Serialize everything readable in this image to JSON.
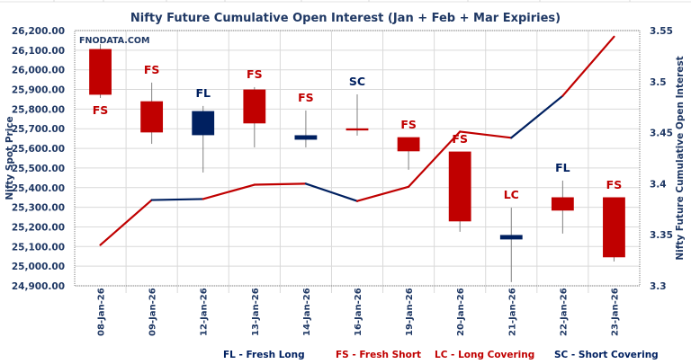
{
  "chart_data": {
    "type": "candlestick+line",
    "title": "Nifty Future Cumulative Open Interest (Jan  + Feb + Mar Expiries)",
    "watermark": "FNODATA.COM",
    "ylabel_left": "Nifty Spot Price",
    "ylabel_right": "Nifty Future Cumulative Open Interest",
    "ylim_left": [
      24900,
      26200
    ],
    "ylim_right": [
      3.3,
      3.55
    ],
    "left_ticks": [
      "26,200.00",
      "26,100.00",
      "26,000.00",
      "25,900.00",
      "25,800.00",
      "25,700.00",
      "25,600.00",
      "25,500.00",
      "25,400.00",
      "25,300.00",
      "25,200.00",
      "25,100.00",
      "25,000.00",
      "24,900.00"
    ],
    "right_ticks": [
      "3.55",
      "3.5",
      "3.45",
      "3.4",
      "3.35",
      "3.3"
    ],
    "grid": true,
    "categories": [
      "08-Jan-26",
      "09-Jan-26",
      "12-Jan-26",
      "13-Jan-26",
      "14-Jan-26",
      "16-Jan-26",
      "19-Jan-26",
      "20-Jan-26",
      "21-Jan-26",
      "22-Jan-26",
      "23-Jan-26"
    ],
    "candles": [
      {
        "open": 26104,
        "high": 26131,
        "low": 25857,
        "close": 25875,
        "label": "FS",
        "label_pos": "below"
      },
      {
        "open": 25838,
        "high": 25935,
        "low": 25623,
        "close": 25683,
        "label": "FS",
        "label_pos": "above"
      },
      {
        "open": 25669,
        "high": 25816,
        "low": 25477,
        "close": 25788,
        "label": "FL",
        "label_pos": "above"
      },
      {
        "open": 25898,
        "high": 25912,
        "low": 25605,
        "close": 25729,
        "label": "FS",
        "label_pos": "above"
      },
      {
        "open": 25646,
        "high": 25793,
        "low": 25605,
        "close": 25665,
        "label": "FS",
        "label_pos": "above"
      },
      {
        "open": 25700,
        "high": 25875,
        "low": 25665,
        "close": 25695,
        "label": "SC",
        "label_pos": "above"
      },
      {
        "open": 25655,
        "high": 25655,
        "low": 25491,
        "close": 25587,
        "label": "FS",
        "label_pos": "above"
      },
      {
        "open": 25582,
        "high": 25582,
        "low": 25175,
        "close": 25230,
        "label": "FS",
        "label_pos": "above"
      },
      {
        "open": 25138,
        "high": 25298,
        "low": 24919,
        "close": 25157,
        "label": "LC",
        "label_pos": "above"
      },
      {
        "open": 25349,
        "high": 25436,
        "low": 25166,
        "close": 25285,
        "label": "FL",
        "label_pos": "above"
      },
      {
        "open": 25349,
        "high": 25349,
        "low": 25024,
        "close": 25047,
        "label": "FS",
        "label_pos": "above"
      }
    ],
    "oi_series": {
      "values": [
        3.34,
        3.384,
        3.385,
        3.399,
        3.4,
        3.383,
        3.397,
        3.451,
        3.445,
        3.486,
        3.544
      ],
      "segment_colors": [
        "#C00000",
        "#002060",
        "#C00000",
        "#C00000",
        "#002060",
        "#C00000",
        "#C00000",
        "#C00000",
        "#002060",
        "#C00000"
      ]
    },
    "legend": [
      {
        "text": "FL - Fresh Long",
        "color": "#002060"
      },
      {
        "text": "FS - Fresh Short",
        "color": "#C00000"
      },
      {
        "text": "LC - Long Covering",
        "color": "#C00000"
      },
      {
        "text": "SC - Short Covering",
        "color": "#002060"
      }
    ],
    "legend_position": "bottom",
    "colors": {
      "bearish": "#C00000",
      "bullish": "#002060",
      "text": "#1F3864",
      "FL": "#002060",
      "FS": "#C00000",
      "LC": "#C00000",
      "SC": "#002060"
    }
  }
}
